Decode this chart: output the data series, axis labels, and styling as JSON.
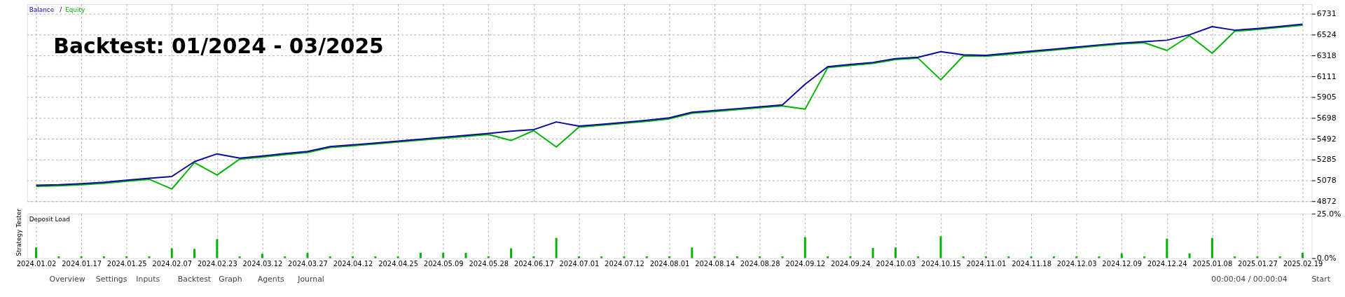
{
  "chart_data": [
    {
      "type": "line",
      "title": "Backtest: 01/2024 - 03/2025",
      "annotations": [
        "/"
      ],
      "grid": true,
      "tick_labels": "y",
      "line_style": "solid",
      "marker": "none",
      "categories": [
        "2024.01.02",
        null,
        "2024.01.17",
        null,
        "2024.01.25",
        null,
        "2024.02.07",
        null,
        "2024.02.23",
        null,
        "2024.03.12",
        null,
        "2024.03.27",
        null,
        "2024.04.12",
        null,
        "2024.04.25",
        null,
        "2024.05.09",
        null,
        "2024.05.28",
        null,
        "2024.06.17",
        null,
        "2024.07.01",
        null,
        "2024.07.12",
        null,
        "2024.08.01",
        null,
        "2024.08.14",
        null,
        "2024.08.28",
        null,
        "2024.09.12",
        null,
        "2024.09.24",
        null,
        "2024.10.03",
        null,
        "2024.10.15",
        null,
        "2024.11.01",
        null,
        "2024.11.18",
        null,
        "2024.12.03",
        null,
        "2024.12.09",
        null,
        "2024.12.24",
        null,
        "2025.01.08",
        null,
        "2025.01.27",
        null,
        "2025.02.19"
      ],
      "ylim": [
        4872,
        6830
      ],
      "yticks": [
        4872,
        5078,
        5285,
        5492,
        5698,
        5905,
        6111,
        6318,
        6524,
        6731
      ],
      "series": [
        {
          "name": "Equity",
          "color": "#00b400",
          "values": [
            5020,
            5025,
            5036,
            5050,
            5070,
            5090,
            4993,
            5255,
            5132,
            5290,
            5310,
            5335,
            5356,
            5405,
            5422,
            5440,
            5459,
            5478,
            5497,
            5516,
            5535,
            5475,
            5573,
            5411,
            5608,
            5626,
            5645,
            5665,
            5690,
            5745,
            5763,
            5781,
            5800,
            5818,
            5786,
            6198,
            6220,
            6240,
            6278,
            6292,
            6078,
            6315,
            6311,
            6331,
            6352,
            6372,
            6393,
            6414,
            6433,
            6446,
            6369,
            6515,
            6341,
            6560,
            6577,
            6598,
            6620
          ]
        },
        {
          "name": "Balance",
          "color": "#0a0aa0",
          "values": [
            5031,
            5035,
            5046,
            5060,
            5080,
            5100,
            5118,
            5265,
            5342,
            5300,
            5320,
            5345,
            5366,
            5415,
            5432,
            5450,
            5469,
            5488,
            5507,
            5526,
            5545,
            5568,
            5583,
            5659,
            5618,
            5636,
            5655,
            5675,
            5700,
            5755,
            5773,
            5791,
            5810,
            5828,
            6033,
            6208,
            6230,
            6250,
            6288,
            6302,
            6357,
            6325,
            6321,
            6341,
            6362,
            6382,
            6403,
            6424,
            6443,
            6456,
            6471,
            6525,
            6606,
            6570,
            6587,
            6608,
            6630
          ]
        }
      ]
    },
    {
      "type": "bar",
      "title": "Deposit Load",
      "grid": "x",
      "annotations": [
        "Strategy Tester",
        "Overview",
        "Settings",
        "Inputs",
        "Backtest",
        "Graph",
        "Agents",
        "Journal",
        "00:00:04 / 00:00:04",
        "Start"
      ],
      "categories": [
        "2024.01.02",
        null,
        "2024.01.17",
        null,
        "2024.01.25",
        null,
        "2024.02.07",
        null,
        "2024.02.23",
        null,
        "2024.03.12",
        null,
        "2024.03.27",
        null,
        "2024.04.12",
        null,
        "2024.04.25",
        null,
        "2024.05.09",
        null,
        "2024.05.28",
        null,
        "2024.06.17",
        null,
        "2024.07.01",
        null,
        "2024.07.12",
        null,
        "2024.08.01",
        null,
        "2024.08.14",
        null,
        "2024.08.28",
        null,
        "2024.09.12",
        null,
        "2024.09.24",
        null,
        "2024.10.03",
        null,
        "2024.10.15",
        null,
        "2024.11.01",
        null,
        "2024.11.18",
        null,
        "2024.12.03",
        null,
        "2024.12.09",
        null,
        "2024.12.24",
        null,
        "2025.01.08",
        null,
        "2025.01.27",
        null,
        "2025.02.19"
      ],
      "ylim": [
        0,
        25
      ],
      "yticks": [
        {
          "value": 0,
          "label": "0.0%"
        },
        {
          "value": 25,
          "label": "25.0%"
        }
      ],
      "series": [
        {
          "color": "#00b400",
          "values": [
            6,
            1,
            1,
            1,
            1,
            1,
            5.5,
            5.2,
            10.7,
            1,
            2.5,
            1,
            3,
            1,
            1,
            1,
            1,
            3,
            3,
            3,
            1,
            5.5,
            1,
            11.4,
            1,
            1,
            1,
            1,
            1,
            6,
            1,
            1,
            1,
            1,
            11.8,
            1,
            1,
            5.7,
            6,
            1,
            12.3,
            1,
            1,
            1,
            1,
            1,
            1,
            1,
            2.7,
            1,
            11,
            2.7,
            11.4,
            1,
            1,
            1,
            3
          ]
        }
      ]
    }
  ]
}
